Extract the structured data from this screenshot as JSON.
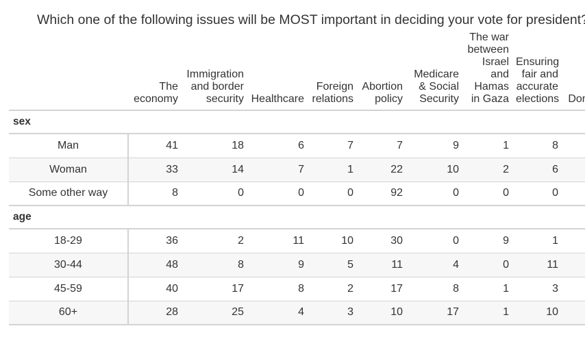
{
  "title": "Which one of the following issues will be MOST important in deciding your vote for president?",
  "chart_data": {
    "type": "table",
    "title": "Which one of the following issues will be MOST important in deciding your vote for president?",
    "columns": [
      "The economy",
      "Immigration and border security",
      "Healthcare",
      "Foreign relations",
      "Abortion policy",
      "Medicare & Social Security",
      "The war between Israel and Hamas in Gaza",
      "Ensuring fair and accurate elections",
      "Don't know"
    ],
    "groups": [
      {
        "name": "sex",
        "rows": [
          {
            "label": "Man",
            "values": [
              "41",
              "18",
              "6",
              "7",
              "7",
              "9",
              "1",
              "8",
              ""
            ]
          },
          {
            "label": "Woman",
            "values": [
              "33",
              "14",
              "7",
              "1",
              "22",
              "10",
              "2",
              "6",
              ""
            ]
          },
          {
            "label": "Some other way",
            "values": [
              "8",
              "0",
              "0",
              "0",
              "92",
              "0",
              "0",
              "0",
              ""
            ]
          }
        ]
      },
      {
        "name": "age",
        "rows": [
          {
            "label": "18-29",
            "values": [
              "36",
              "2",
              "11",
              "10",
              "30",
              "0",
              "9",
              "1",
              ""
            ]
          },
          {
            "label": "30-44",
            "values": [
              "48",
              "8",
              "9",
              "5",
              "11",
              "4",
              "0",
              "11",
              ""
            ]
          },
          {
            "label": "45-59",
            "values": [
              "40",
              "17",
              "8",
              "2",
              "17",
              "8",
              "1",
              "3",
              ""
            ]
          },
          {
            "label": "60+",
            "values": [
              "28",
              "25",
              "4",
              "3",
              "10",
              "17",
              "1",
              "10",
              ""
            ]
          }
        ]
      }
    ]
  }
}
